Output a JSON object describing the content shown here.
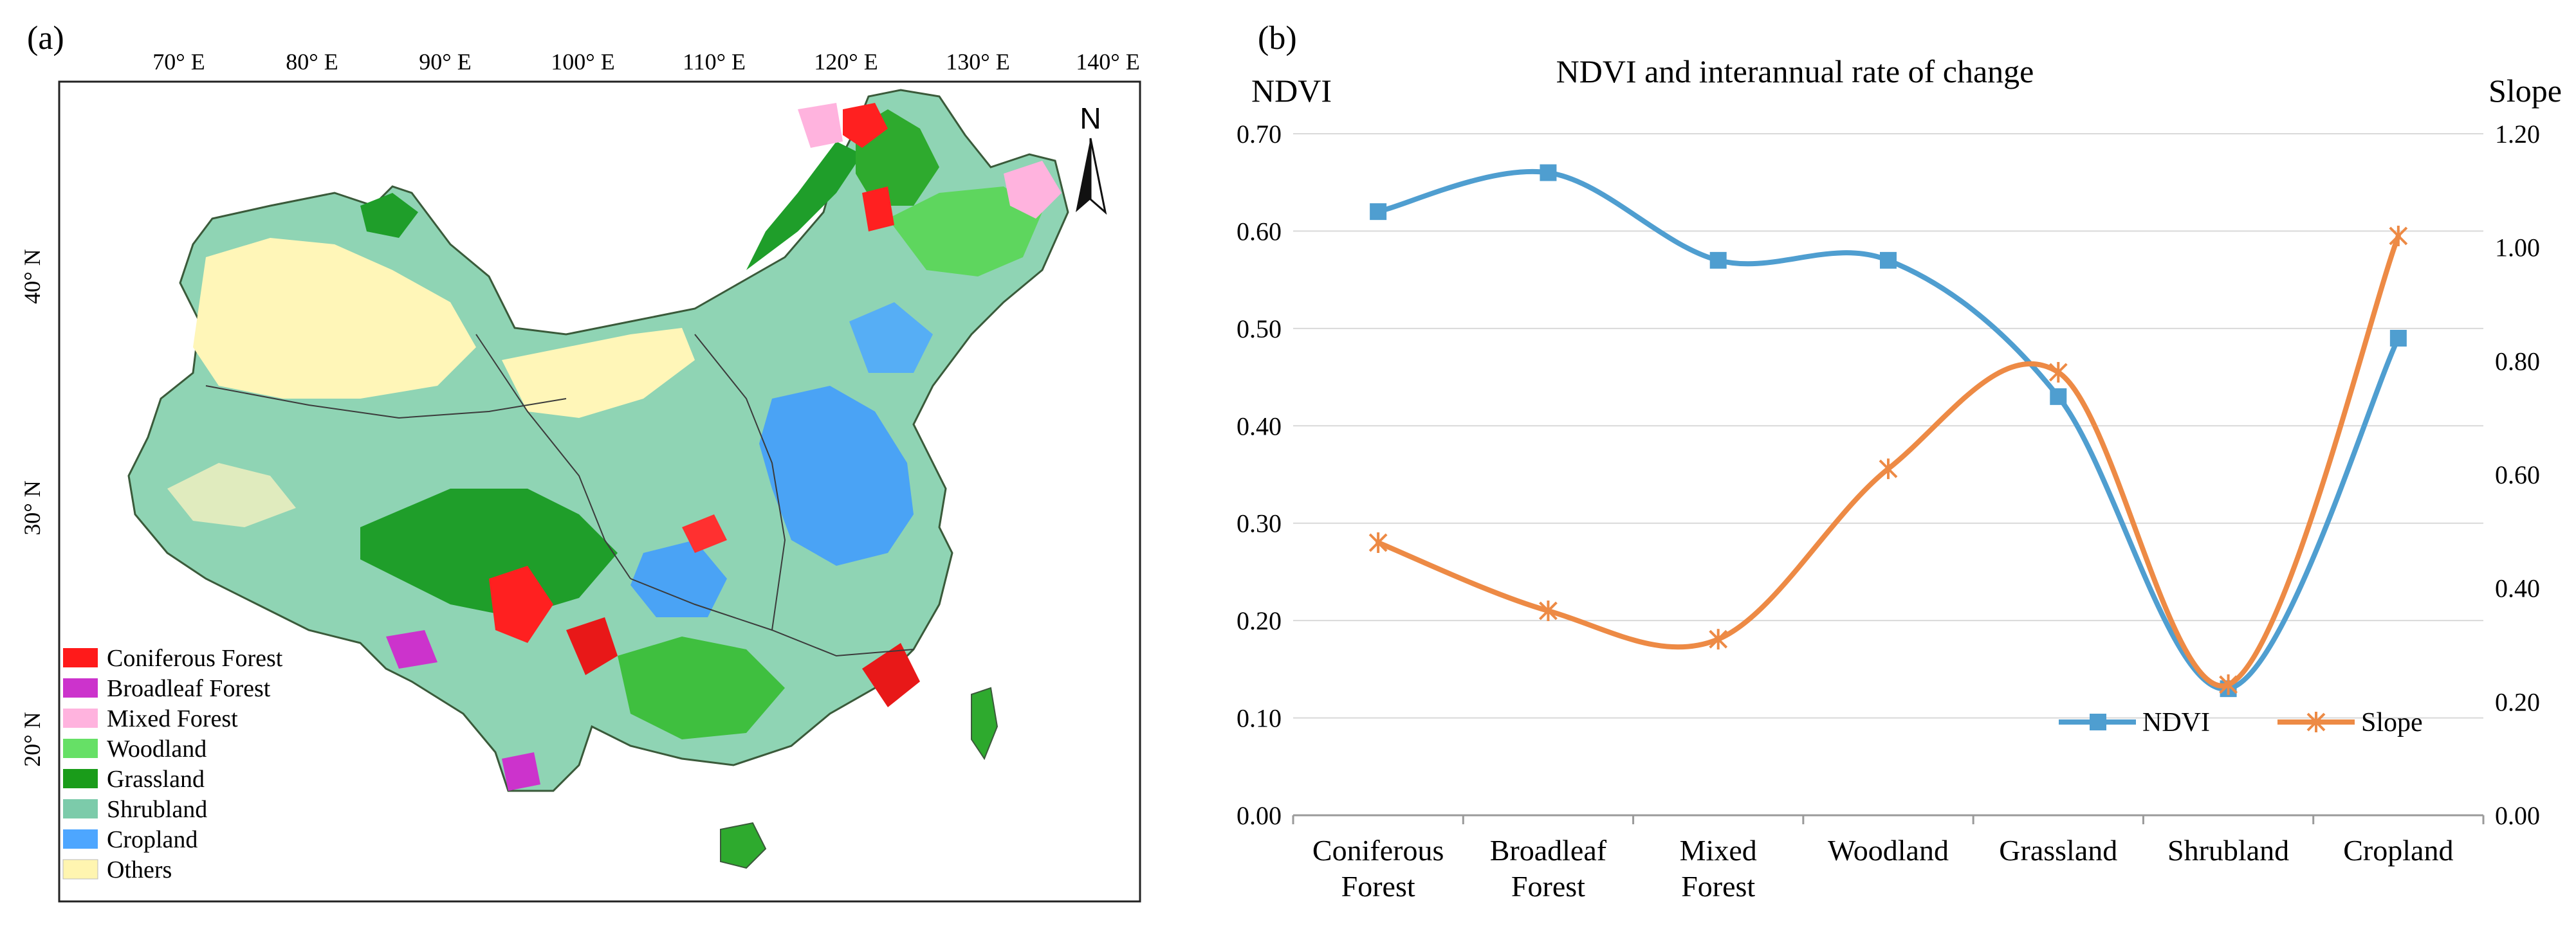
{
  "panel_a": {
    "label": "(a)",
    "lon_labels": [
      "70° E",
      "80° E",
      "90° E",
      "100° E",
      "110° E",
      "120° E",
      "130° E",
      "140° E"
    ],
    "lat_labels": [
      "40° N",
      "30° N",
      "20° N"
    ],
    "north_arrow": "N",
    "legend": [
      {
        "label": "Coniferous Forest",
        "color": "#ff1a1a"
      },
      {
        "label": "Broadleaf Forest",
        "color": "#cc33cc"
      },
      {
        "label": "Mixed Forest",
        "color": "#ffb3de"
      },
      {
        "label": "Woodland",
        "color": "#66e066"
      },
      {
        "label": "Grassland",
        "color": "#1a9c1a"
      },
      {
        "label": "Shrubland",
        "color": "#7ccbaa"
      },
      {
        "label": "Cropland",
        "color": "#4da6ff"
      },
      {
        "label": "Others",
        "color": "#fff5b0"
      }
    ]
  },
  "chart_data": {
    "type": "line",
    "panel_label": "(b)",
    "title": "NDVI and interannual rate of change",
    "ylabel_left": "NDVI",
    "ylabel_right": "Slope",
    "categories": [
      [
        "Coniferous",
        "Forest"
      ],
      [
        "Broadleaf",
        "Forest"
      ],
      [
        "Mixed",
        "Forest"
      ],
      [
        "Woodland"
      ],
      [
        "Grassland"
      ],
      [
        "Shrubland"
      ],
      [
        "Cropland"
      ]
    ],
    "left_axis": {
      "min": 0,
      "max": 0.7,
      "ticks": [
        "0.00",
        "0.10",
        "0.20",
        "0.30",
        "0.40",
        "0.50",
        "0.60",
        "0.70"
      ]
    },
    "right_axis": {
      "min": 0,
      "max": 1.2,
      "ticks": [
        "0.00",
        "0.20",
        "0.40",
        "0.60",
        "0.80",
        "1.00",
        "1.20"
      ]
    },
    "series": [
      {
        "name": "NDVI",
        "axis": "left",
        "color": "#4f9ed0",
        "marker": "square",
        "values": [
          0.62,
          0.66,
          0.57,
          0.57,
          0.43,
          0.13,
          0.49
        ]
      },
      {
        "name": "Slope",
        "axis": "right",
        "color": "#ed8a45",
        "marker": "star",
        "values": [
          0.48,
          0.36,
          0.31,
          0.61,
          0.78,
          0.23,
          1.02
        ]
      }
    ],
    "legend_position": "bottom-right",
    "grid": "horizontal"
  }
}
